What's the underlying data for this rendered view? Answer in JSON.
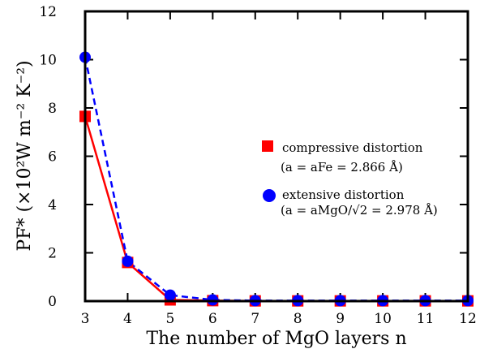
{
  "chart_data": {
    "type": "line",
    "title": "",
    "xlabel": "The number of MgO layers n",
    "ylabel": "PF* (×10²W m⁻² K⁻²)",
    "xlim": [
      3,
      12
    ],
    "ylim": [
      0,
      12
    ],
    "xticks": [
      3,
      4,
      5,
      6,
      7,
      8,
      9,
      10,
      11,
      12
    ],
    "yticks": [
      0,
      2,
      4,
      6,
      8,
      10,
      12
    ],
    "grid": false,
    "legend_position": "right",
    "x": [
      3,
      4,
      5,
      6,
      7,
      8,
      9,
      10,
      11,
      12
    ],
    "series": [
      {
        "name": "compressive distortion",
        "note": "(a = aFe = 2.866 Å)",
        "color": "#ff0000",
        "line_style": "solid",
        "marker": "square",
        "values": [
          7.65,
          1.6,
          0.05,
          0.02,
          0.01,
          0.01,
          0.01,
          0.01,
          0.01,
          0.01
        ]
      },
      {
        "name": "extensive distortion",
        "note": "(a = aMgO/√2 = 2.978 Å)",
        "color": "#0000ff",
        "line_style": "dashed",
        "marker": "circle",
        "values": [
          10.1,
          1.65,
          0.25,
          0.05,
          0.02,
          0.02,
          0.02,
          0.02,
          0.02,
          0.02
        ]
      }
    ]
  }
}
